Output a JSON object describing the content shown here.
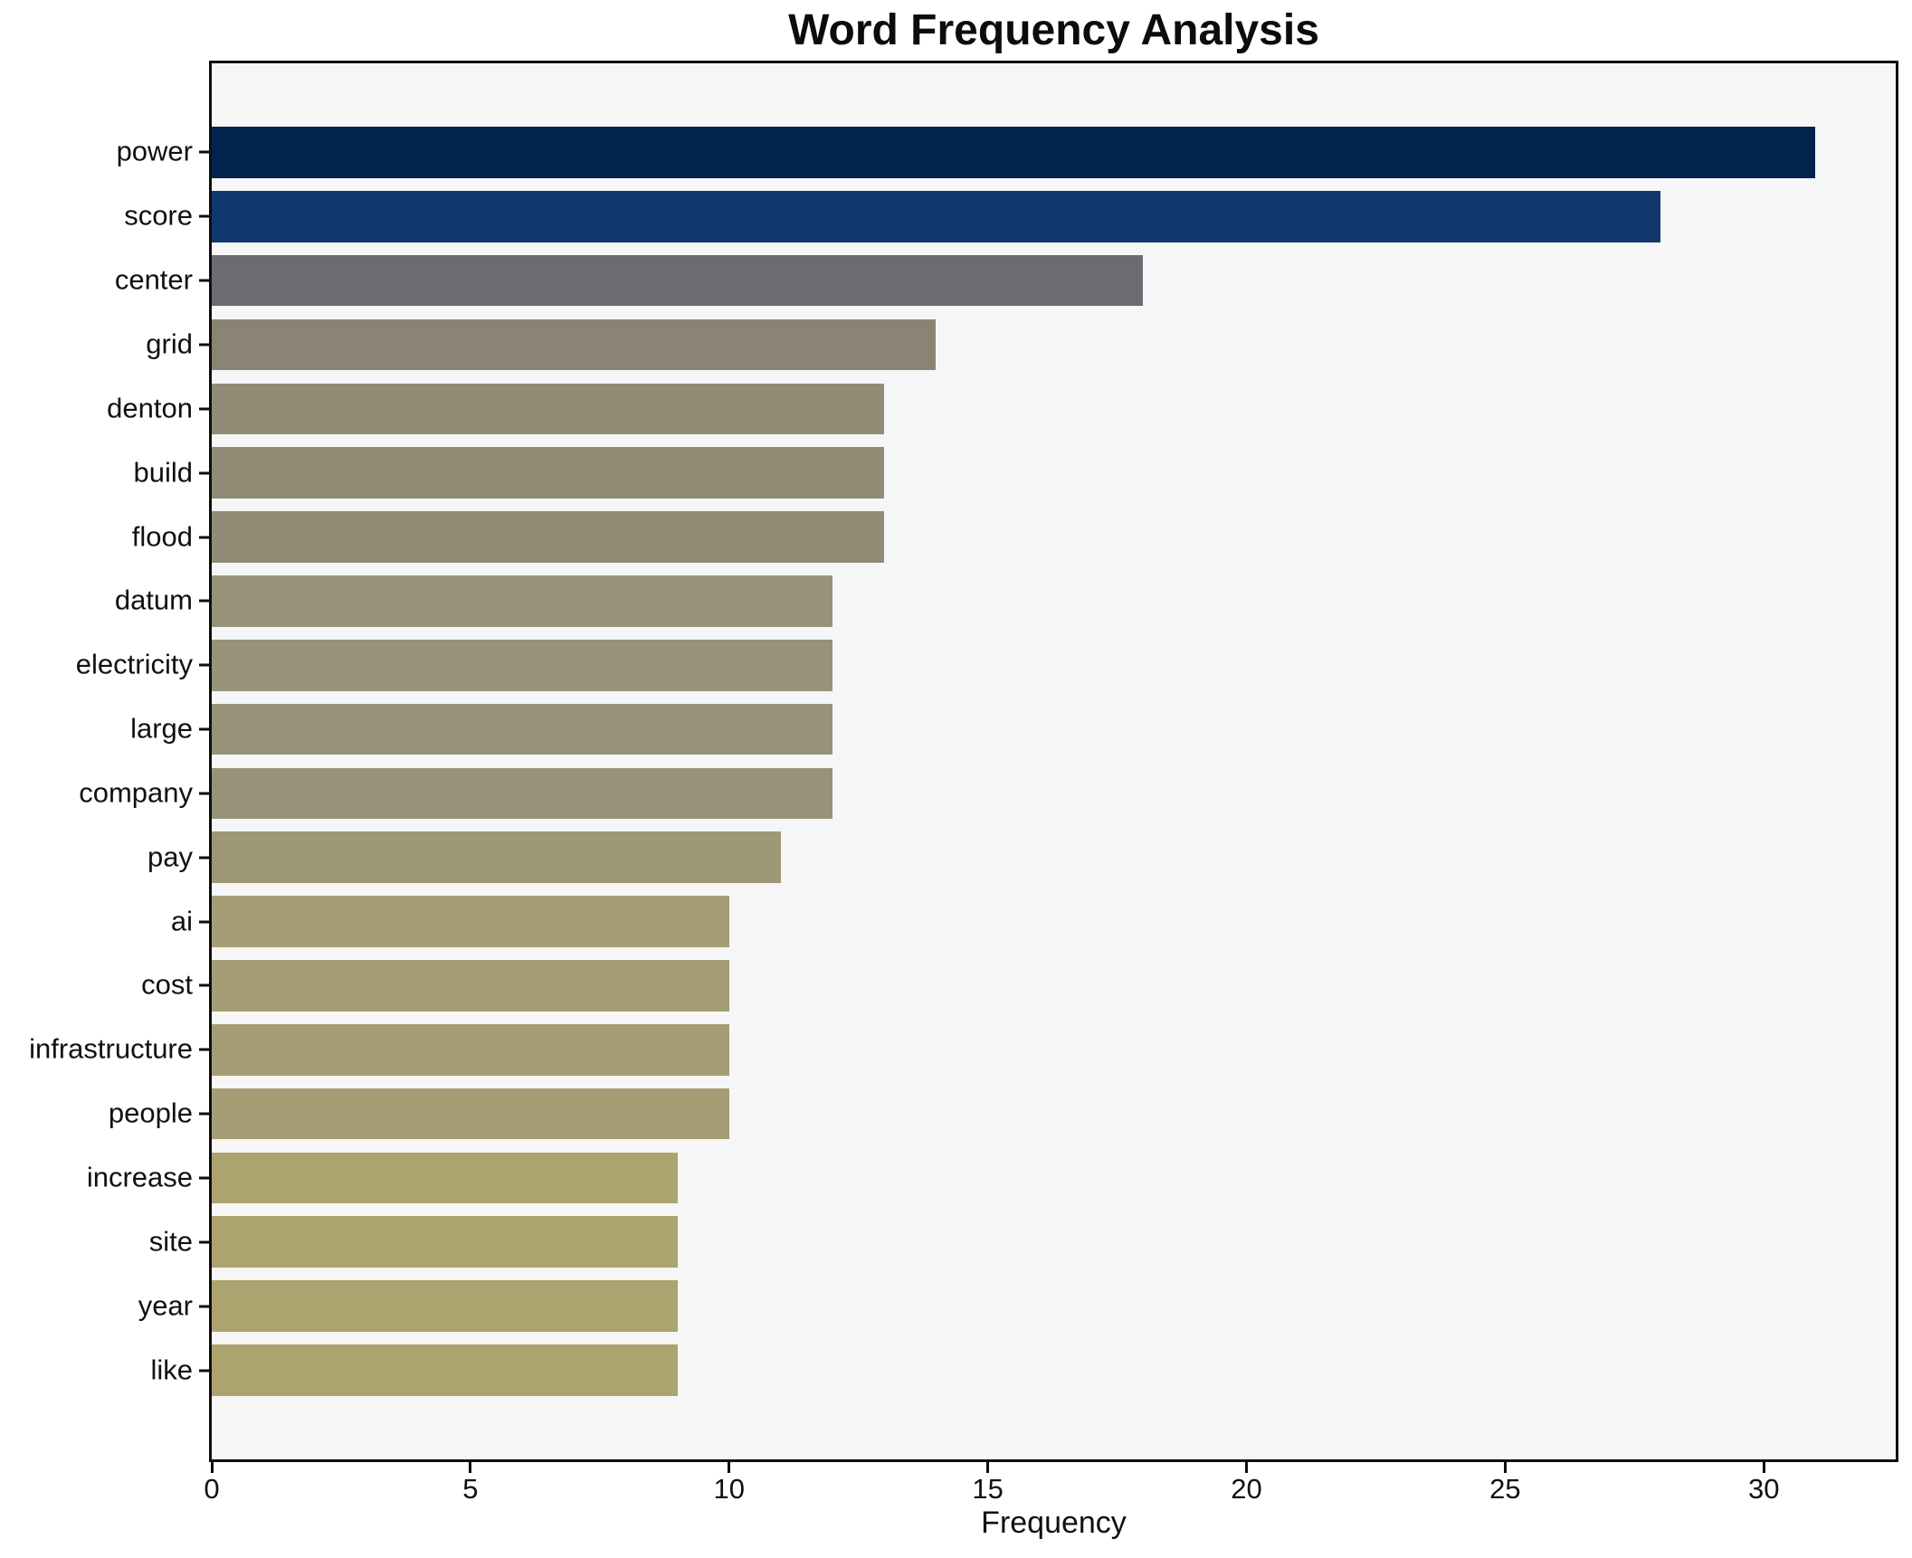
{
  "chart_data": {
    "type": "bar",
    "orientation": "horizontal",
    "title": "Word Frequency Analysis",
    "xlabel": "Frequency",
    "ylabel": "",
    "categories": [
      "power",
      "score",
      "center",
      "grid",
      "denton",
      "build",
      "flood",
      "datum",
      "electricity",
      "large",
      "company",
      "pay",
      "ai",
      "cost",
      "infrastructure",
      "people",
      "increase",
      "site",
      "year",
      "like"
    ],
    "values": [
      31,
      28,
      18,
      14,
      13,
      13,
      13,
      12,
      12,
      12,
      12,
      11,
      10,
      10,
      10,
      10,
      9,
      9,
      9,
      9
    ],
    "bar_colors": [
      "#02234d",
      "#10386f",
      "#6a6c72",
      "#8a8475",
      "#918b76",
      "#918b76",
      "#918b76",
      "#989278",
      "#989278",
      "#989278",
      "#989278",
      "#9f9876",
      "#a59e74",
      "#a59e74",
      "#a59e74",
      "#a59e74",
      "#aca36f",
      "#aca36f",
      "#aca36f",
      "#aca36f"
    ],
    "xticks": [
      0,
      5,
      10,
      15,
      20,
      25,
      30
    ],
    "xlim": [
      0,
      32.55
    ],
    "grid": false,
    "legend": null,
    "plot_background": "#f6f6f7",
    "figure_background": "#ffffff",
    "spine_color": "#0e0e0e",
    "title_color": "#0c0c0c",
    "tick_label_color": "#111111"
  }
}
